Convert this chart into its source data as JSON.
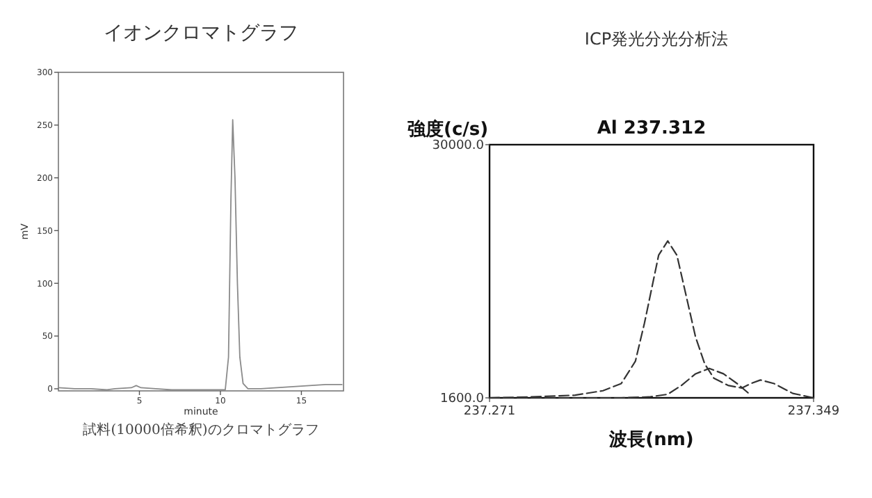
{
  "chart_data": [
    {
      "type": "line",
      "title": "イオンクロマトグラフ",
      "xlabel": "minute",
      "ylabel": "mV",
      "xlim": [
        0,
        17.6
      ],
      "ylim": [
        -2,
        300
      ],
      "xticks": [
        5,
        10,
        15
      ],
      "yticks": [
        0,
        50,
        100,
        150,
        200,
        250,
        300
      ],
      "line_style": "solid",
      "annotations": [
        "試料(10000倍希釈)のクロマトグラフ"
      ],
      "series": [
        {
          "color": "#8a8a8a",
          "x": [
            0,
            1,
            2,
            3,
            3.5,
            4.5,
            4.8,
            5.1,
            6,
            7,
            8,
            9,
            10,
            10.3,
            10.5,
            10.65,
            10.76,
            10.9,
            11.05,
            11.2,
            11.4,
            11.7,
            12.5,
            13.5,
            14.5,
            15.5,
            16.5,
            17.5
          ],
          "values": [
            1,
            0,
            0,
            -1,
            0,
            1,
            3,
            1,
            0,
            -1,
            -1,
            -1,
            -1,
            -1,
            30,
            180,
            255,
            200,
            100,
            30,
            5,
            0,
            0,
            1,
            2,
            3,
            4,
            4
          ]
        }
      ]
    },
    {
      "type": "line",
      "title": "ICP発光分光分析法",
      "subtitle": "Al 237.312",
      "xlabel": "波長(nm)",
      "ylabel": "強度(c/s)",
      "xlim": [
        237.271,
        237.349
      ],
      "ylim": [
        1600,
        30000
      ],
      "xticks": [
        {
          "value": 237.271,
          "label": "237.271"
        },
        {
          "value": 237.349,
          "label": "237.349"
        }
      ],
      "yticks": [
        {
          "value": 1600,
          "label": "1600.0"
        },
        {
          "value": 30000,
          "label": "30000.0"
        }
      ],
      "line_style": "dashed",
      "series": [
        {
          "color": "#333333",
          "x": [
            237.271,
            237.2805,
            237.2916,
            237.2983,
            237.3027,
            237.3061,
            237.3083,
            237.31,
            237.3117,
            237.3139,
            237.3161,
            237.3183,
            237.3206,
            237.3228,
            237.325,
            237.3284,
            237.3317,
            237.3339,
            237.3362,
            237.3395,
            237.344,
            237.349
          ],
          "values": [
            1600,
            1700,
            1900,
            2400,
            3200,
            5700,
            10000,
            13800,
            17600,
            19200,
            17600,
            13100,
            8400,
            5400,
            3800,
            3000,
            2700,
            3200,
            3600,
            3200,
            2100,
            1600
          ]
        },
        {
          "color": "#333333",
          "x": [
            237.271,
            237.2916,
            237.3027,
            237.3094,
            237.3139,
            237.3172,
            237.3206,
            237.3239,
            237.3273,
            237.3306,
            237.3339
          ],
          "values": [
            1600,
            1600,
            1600,
            1700,
            2000,
            3000,
            4300,
            4900,
            4300,
            3200,
            1900
          ]
        }
      ]
    }
  ]
}
